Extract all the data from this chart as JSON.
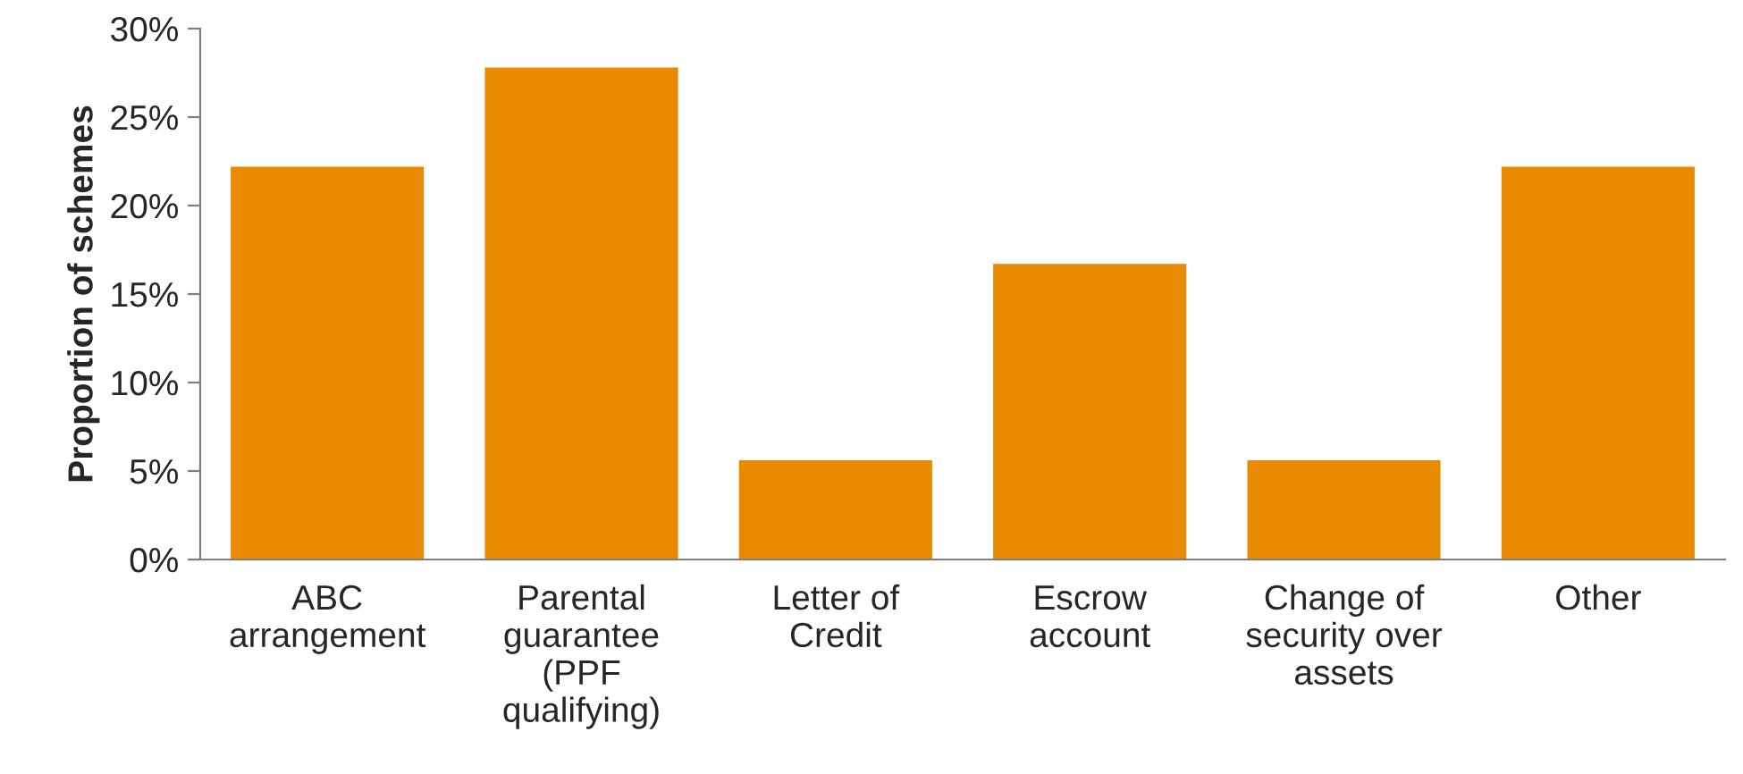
{
  "chart_data": {
    "type": "bar",
    "ylabel": "Proportion of schemes",
    "categories": [
      "ABC\narrangement",
      "Parental\nguarantee\n(PPF\nqualifying)",
      "Letter of\nCredit",
      "Escrow\naccount",
      "Change of\nsecurity over\nassets",
      "Other"
    ],
    "values": [
      22.2,
      27.8,
      5.6,
      16.7,
      5.6,
      22.2
    ],
    "color": "#e88b00",
    "ylim": [
      0,
      30
    ],
    "yticks": [
      {
        "value": 0,
        "label": "0%"
      },
      {
        "value": 5,
        "label": "5%"
      },
      {
        "value": 10,
        "label": "10%"
      },
      {
        "value": 15,
        "label": "15%"
      },
      {
        "value": 20,
        "label": "20%"
      },
      {
        "value": 25,
        "label": "25%"
      },
      {
        "value": 30,
        "label": "30%"
      }
    ],
    "grid": false
  }
}
